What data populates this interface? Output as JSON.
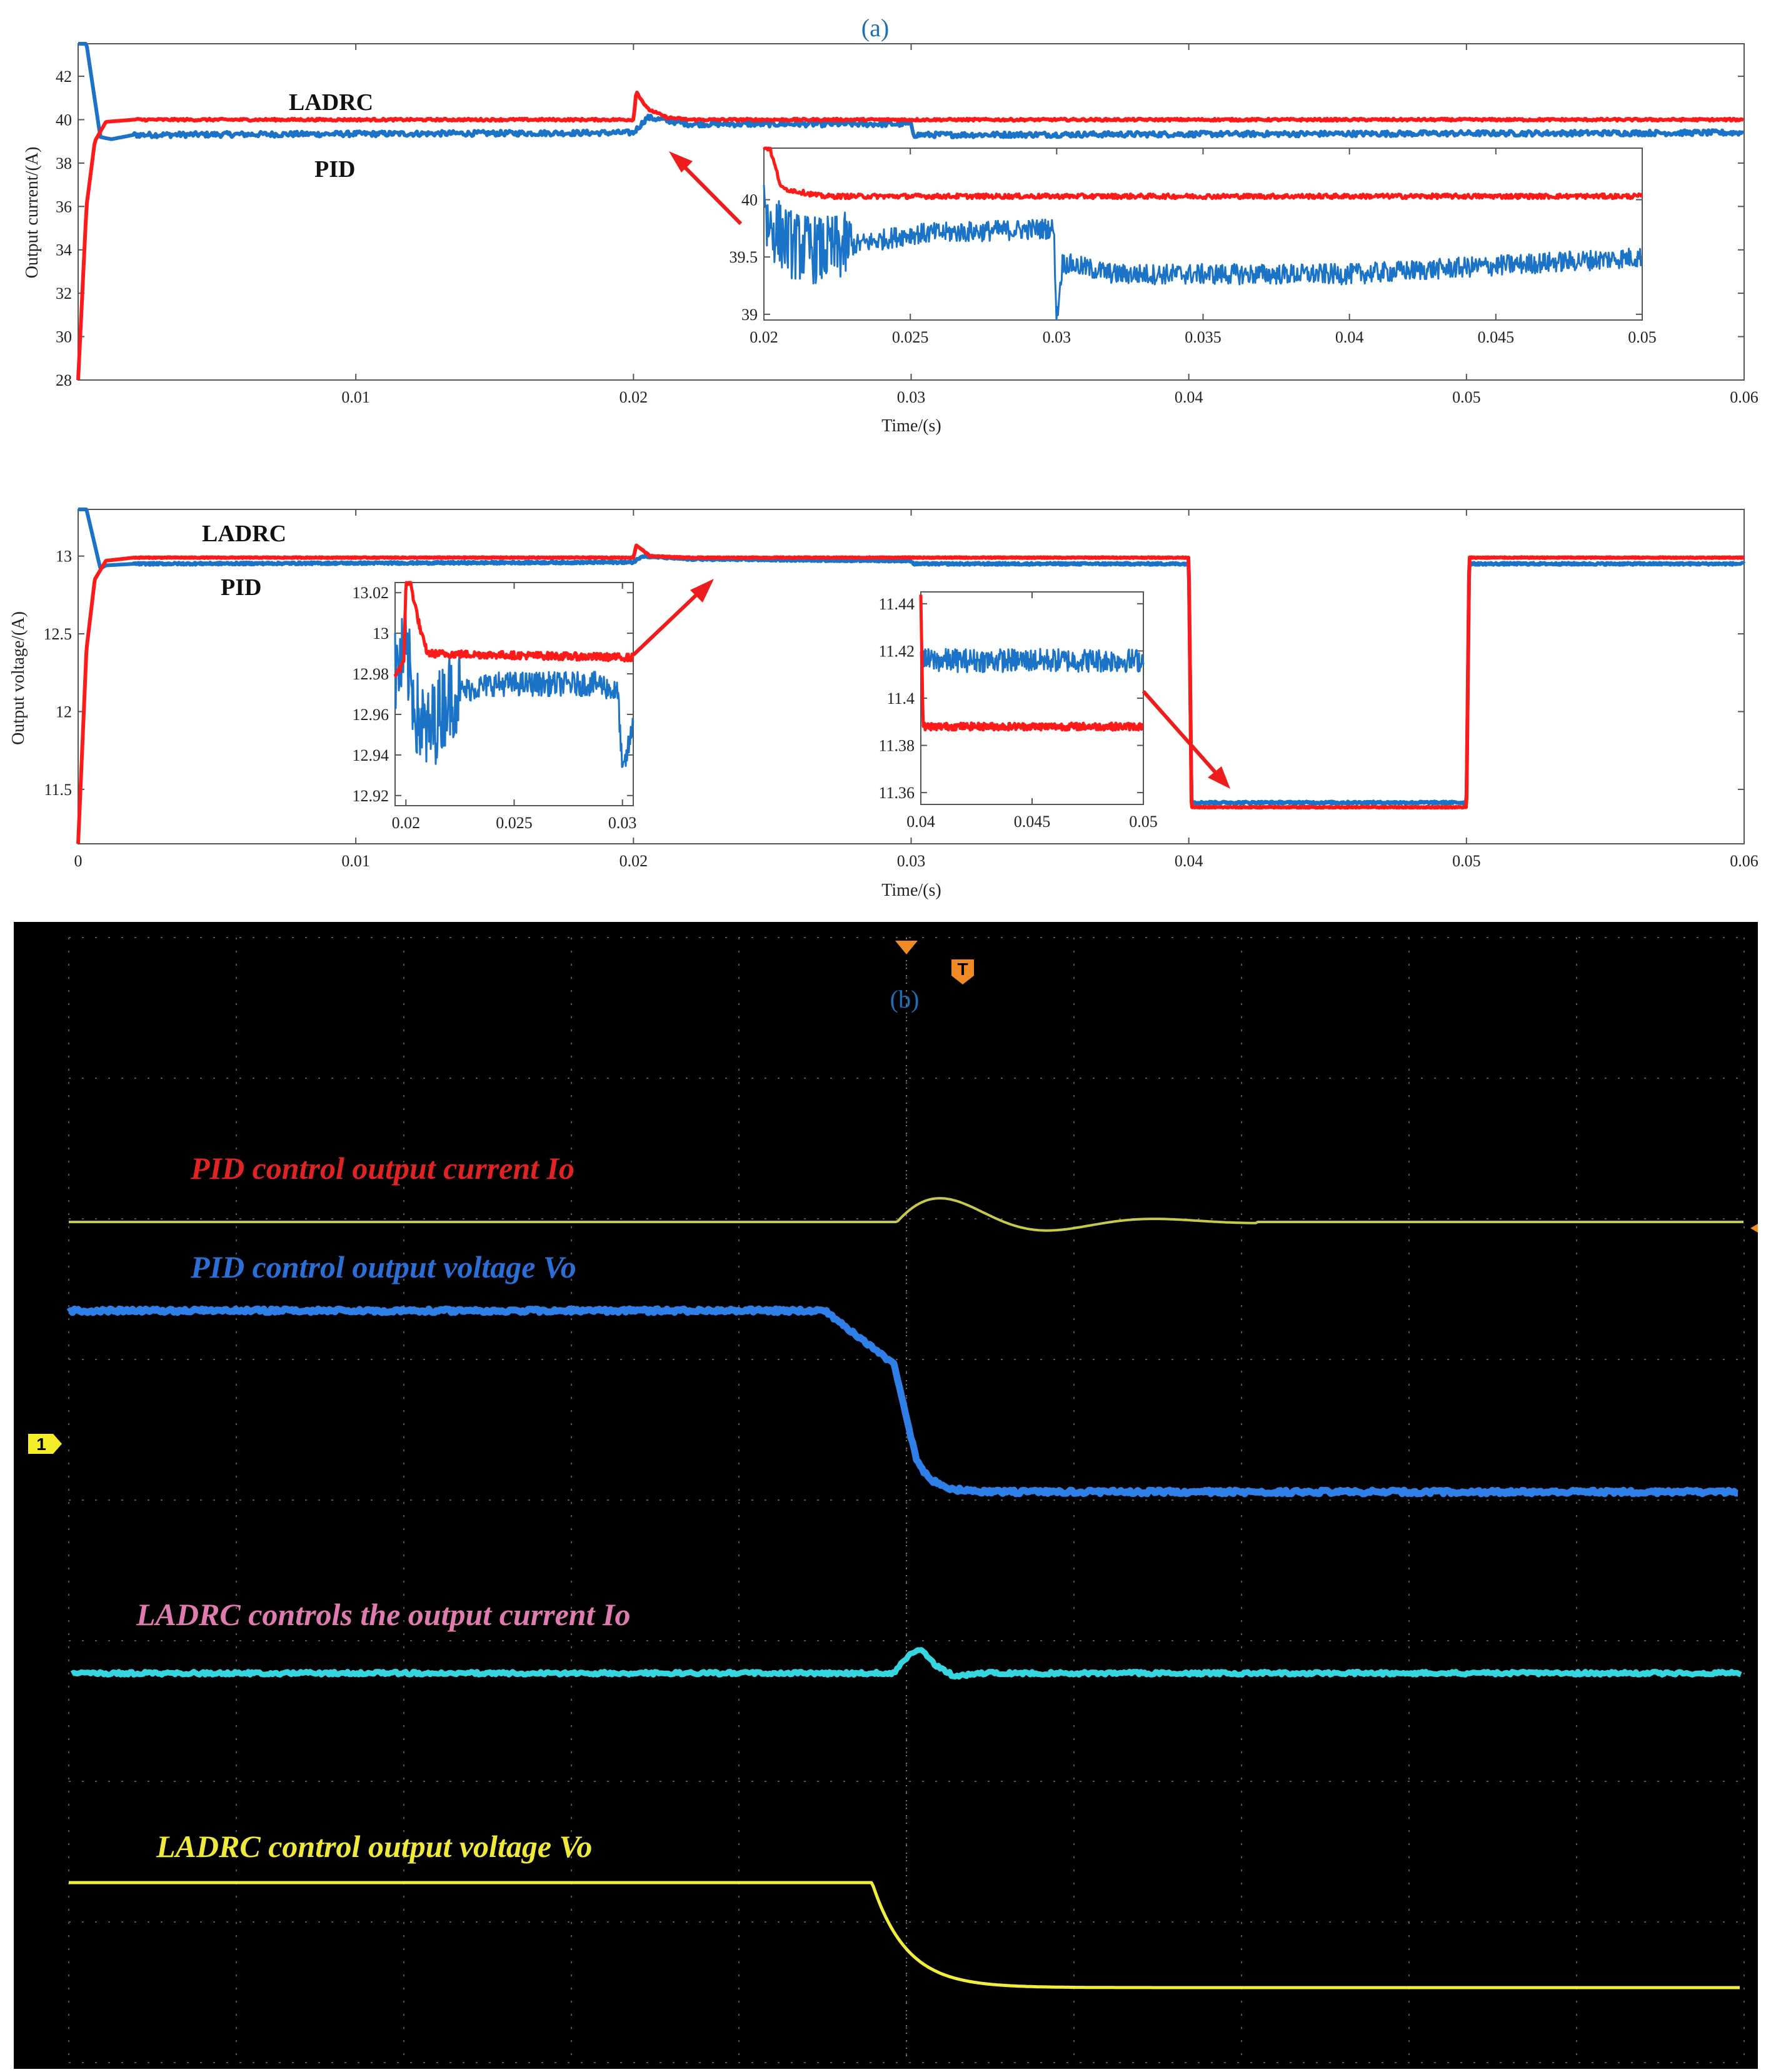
{
  "panel_a": {
    "tag": "(a)",
    "ylabel": "Output current/(A)",
    "xlabel": "Time/(s)",
    "xlim": [
      0,
      0.06
    ],
    "ylim": [
      28,
      43.5
    ],
    "xticks": [
      0.01,
      0.02,
      0.03,
      0.04,
      0.05,
      0.06
    ],
    "xtick_labels": [
      "0.01",
      "0.02",
      "0.03",
      "0.04",
      "0.05",
      "0.06"
    ],
    "yticks": [
      28,
      30,
      32,
      34,
      36,
      38,
      40,
      42
    ],
    "ytick_labels": [
      "28",
      "30",
      "32",
      "34",
      "36",
      "38",
      "40",
      "42"
    ],
    "label_ladrc": "LADRC",
    "label_pid": "PID",
    "inset": {
      "xlim": [
        0.02,
        0.05
      ],
      "ylim": [
        38.95,
        40.45
      ],
      "xticks": [
        0.02,
        0.025,
        0.03,
        0.035,
        0.04,
        0.045,
        0.05
      ],
      "xtick_labels": [
        "0.02",
        "0.025",
        "0.03",
        "0.035",
        "0.04",
        "0.045",
        "0.05"
      ],
      "yticks": [
        39,
        39.5,
        40
      ],
      "ytick_labels": [
        "39",
        "39.5",
        "40"
      ]
    }
  },
  "panel_b": {
    "ylabel": "Output voltage/(A)",
    "xlabel": "Time/(s)",
    "xlim": [
      0,
      0.06
    ],
    "ylim": [
      11.15,
      13.3
    ],
    "xticks": [
      0,
      0.01,
      0.02,
      0.03,
      0.04,
      0.05,
      0.06
    ],
    "xtick_labels": [
      "0",
      "0.01",
      "0.02",
      "0.03",
      "0.04",
      "0.05",
      "0.06"
    ],
    "yticks": [
      11.5,
      12,
      12.5,
      13
    ],
    "ytick_labels": [
      "11.5",
      "12",
      "12.5",
      "13"
    ],
    "label_ladrc": "LADRC",
    "label_pid": "PID",
    "inset1": {
      "xlim": [
        0.0195,
        0.0305
      ],
      "ylim": [
        12.915,
        13.025
      ],
      "xticks": [
        0.02,
        0.025,
        0.03
      ],
      "xtick_labels": [
        "0.02",
        "0.025",
        "0.03"
      ],
      "yticks": [
        12.92,
        12.94,
        12.96,
        12.98,
        13,
        13.02
      ],
      "ytick_labels": [
        "12.92",
        "12.94",
        "12.96",
        "12.98",
        "13",
        "13.02"
      ]
    },
    "inset2": {
      "xlim": [
        0.04,
        0.05
      ],
      "ylim": [
        11.355,
        11.445
      ],
      "xticks": [
        0.04,
        0.045,
        0.05
      ],
      "xtick_labels": [
        "0.04",
        "0.045",
        "0.05"
      ],
      "yticks": [
        11.36,
        11.38,
        11.4,
        11.42,
        11.44
      ],
      "ytick_labels": [
        "11.36",
        "11.38",
        "11.4",
        "11.42",
        "11.44"
      ]
    }
  },
  "scope": {
    "tag": "(b)",
    "channel_marker": "1",
    "trigger_marker": "T",
    "labels": {
      "pid_current": "PID control output current Io",
      "pid_voltage": "PID control output voltage Vo",
      "ladrc_current": "LADRC controls the output current Io",
      "ladrc_voltage": "LADRC control output voltage Vo"
    }
  },
  "colors": {
    "ladrc": "#ff1a1a",
    "pid": "#1a73c6",
    "scope_bg": "#000000",
    "scope_yellow_dim": "#c8c84a",
    "scope_blue": "#2f7fe8",
    "scope_cyan": "#35d6e0",
    "scope_yellow": "#f2ee3c"
  },
  "chart_data": [
    {
      "type": "line",
      "title": "(a)",
      "xlabel": "Time/(s)",
      "ylabel": "Output current/(A)",
      "xlim": [
        0,
        0.06
      ],
      "ylim": [
        28,
        43.5
      ],
      "series": [
        {
          "name": "LADRC",
          "x": [
            0,
            0.0003,
            0.0006,
            0.001,
            0.002,
            0.02,
            0.0201,
            0.0205,
            0.0212,
            0.022,
            0.03,
            0.06
          ],
          "y": [
            28,
            36,
            39,
            39.9,
            40.0,
            40.0,
            41.3,
            40.5,
            40.1,
            40.0,
            40.0,
            40.0
          ]
        },
        {
          "name": "PID",
          "x": [
            0,
            0.0003,
            0.0008,
            0.0012,
            0.002,
            0.02,
            0.0205,
            0.022,
            0.03,
            0.0301,
            0.06
          ],
          "y": [
            43.5,
            43.5,
            39.2,
            39.1,
            39.3,
            39.4,
            40.1,
            39.8,
            39.8,
            39.3,
            39.4
          ]
        }
      ]
    },
    {
      "type": "line",
      "xlabel": "Time/(s)",
      "ylabel": "Output voltage/(A)",
      "xlim": [
        0,
        0.06
      ],
      "ylim": [
        11.15,
        13.3
      ],
      "series": [
        {
          "name": "LADRC",
          "x": [
            0,
            0.0003,
            0.0006,
            0.001,
            0.002,
            0.02,
            0.0201,
            0.0206,
            0.022,
            0.04,
            0.0401,
            0.05,
            0.0501,
            0.06
          ],
          "y": [
            11.15,
            12.4,
            12.85,
            12.97,
            12.99,
            12.99,
            13.07,
            13.0,
            12.99,
            12.99,
            11.385,
            11.385,
            12.99,
            12.99
          ]
        },
        {
          "name": "PID",
          "x": [
            0,
            0.0003,
            0.0008,
            0.001,
            0.002,
            0.02,
            0.0203,
            0.022,
            0.03,
            0.0301,
            0.04,
            0.0401,
            0.05,
            0.0501,
            0.06
          ],
          "y": [
            13.3,
            13.3,
            12.92,
            12.94,
            12.95,
            12.96,
            13.0,
            12.98,
            12.97,
            12.95,
            12.95,
            11.415,
            11.415,
            12.95,
            12.95
          ]
        }
      ]
    }
  ]
}
